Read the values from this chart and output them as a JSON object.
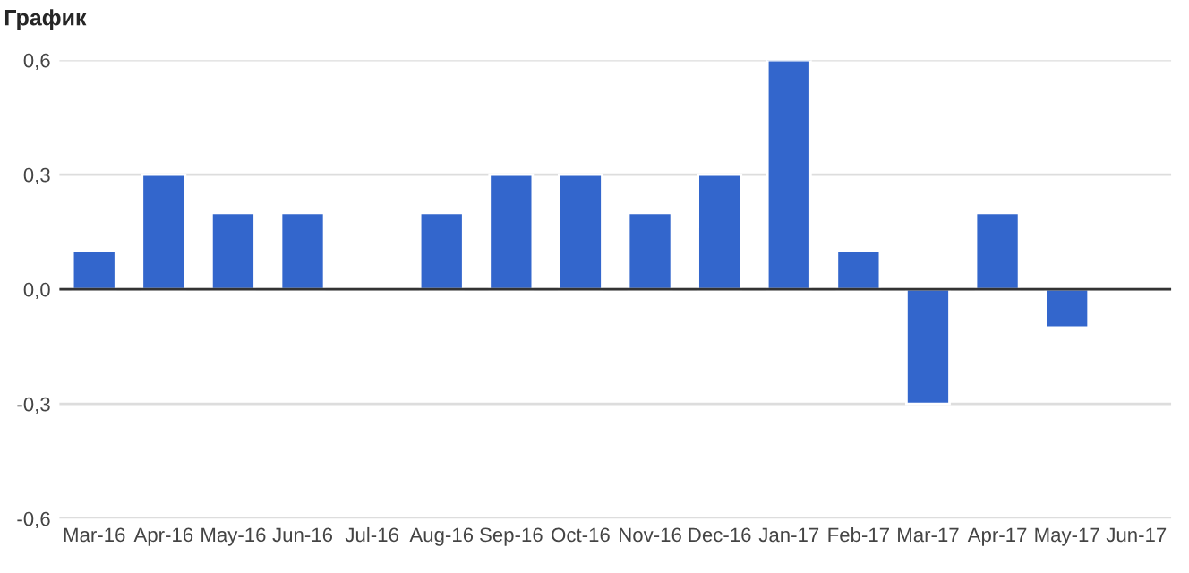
{
  "chart_data": {
    "type": "bar",
    "title": "График",
    "categories": [
      "Mar-16",
      "Apr-16",
      "May-16",
      "Jun-16",
      "Jul-16",
      "Aug-16",
      "Sep-16",
      "Oct-16",
      "Nov-16",
      "Dec-16",
      "Jan-17",
      "Feb-17",
      "Mar-17",
      "Apr-17",
      "May-17",
      "Jun-17"
    ],
    "values": [
      0.1,
      0.3,
      0.2,
      0.2,
      null,
      0.2,
      0.3,
      0.3,
      0.2,
      0.3,
      0.6,
      0.1,
      -0.3,
      0.2,
      -0.1,
      null
    ],
    "color": "#3366cc",
    "ylim": [
      -0.6,
      0.6
    ],
    "yticks": [
      {
        "value": -0.6,
        "label": "-0,6"
      },
      {
        "value": -0.3,
        "label": "-0,3"
      },
      {
        "value": 0,
        "label": "0,0"
      },
      {
        "value": 0.3,
        "label": "0,3"
      },
      {
        "value": 0.6,
        "label": "0,6"
      }
    ],
    "grid": "y",
    "ref_lines": [
      {
        "axis": "y",
        "value": 0,
        "color": "#333333"
      }
    ]
  }
}
